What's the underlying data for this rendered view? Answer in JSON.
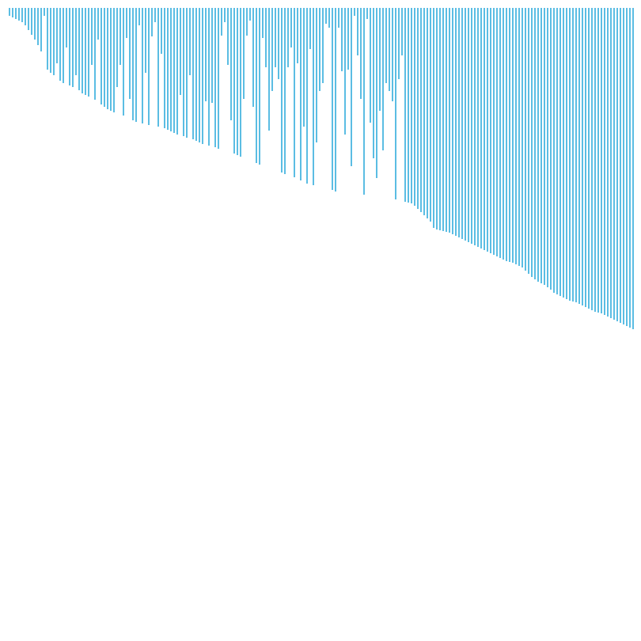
{
  "chart_data": {
    "type": "bar",
    "color": "#5bbde3",
    "inverted": true,
    "ylim": [
      0,
      790
    ],
    "values": [
      10,
      12,
      14,
      16,
      18,
      22,
      28,
      34,
      40,
      47,
      55,
      10,
      78,
      82,
      85,
      70,
      92,
      95,
      50,
      98,
      100,
      85,
      104,
      108,
      110,
      112,
      72,
      116,
      40,
      122,
      125,
      128,
      130,
      132,
      100,
      72,
      136,
      38,
      115,
      142,
      144,
      22,
      146,
      82,
      148,
      36,
      18,
      150,
      58,
      152,
      154,
      156,
      158,
      160,
      110,
      162,
      164,
      85,
      166,
      168,
      170,
      172,
      118,
      174,
      120,
      176,
      178,
      35,
      18,
      72,
      142,
      184,
      186,
      188,
      115,
      35,
      16,
      125,
      196,
      198,
      38,
      75,
      155,
      105,
      75,
      90,
      208,
      210,
      75,
      50,
      214,
      70,
      218,
      150,
      222,
      52,
      224,
      170,
      105,
      95,
      20,
      25,
      230,
      232,
      25,
      80,
      160,
      78,
      200,
      10,
      60,
      115,
      236,
      14,
      145,
      190,
      215,
      130,
      180,
      95,
      105,
      118,
      242,
      90,
      60,
      245,
      246,
      247,
      250,
      254,
      258,
      262,
      266,
      270,
      278,
      280,
      281,
      282,
      283,
      284,
      286,
      288,
      290,
      292,
      294,
      296,
      298,
      300,
      302,
      304,
      306,
      308,
      310,
      312,
      314,
      316,
      318,
      320,
      321,
      322,
      324,
      326,
      328,
      332,
      336,
      340,
      343,
      346,
      348,
      350,
      353,
      356,
      360,
      362,
      364,
      366,
      368,
      370,
      371,
      372,
      374,
      376,
      378,
      380,
      382,
      384,
      385,
      386,
      388,
      390,
      392,
      394,
      396,
      398,
      400,
      402,
      404,
      406
    ]
  }
}
